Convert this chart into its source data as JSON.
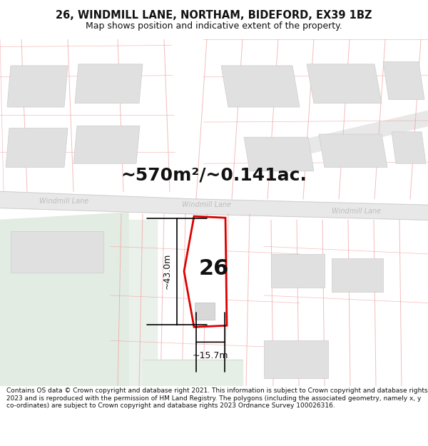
{
  "title": "26, WINDMILL LANE, NORTHAM, BIDEFORD, EX39 1BZ",
  "subtitle": "Map shows position and indicative extent of the property.",
  "area_label": "~570m²/~0.141ac.",
  "width_label": "~15.7m",
  "height_label": "~43.0m",
  "number_label": "26",
  "road_label": "Windmill Lane",
  "copyright_text": "Contains OS data © Crown copyright and database right 2021. This information is subject to Crown copyright and database rights 2023 and is reproduced with the permission of HM Land Registry. The polygons (including the associated geometry, namely x, y co-ordinates) are subject to Crown copyright and database rights 2023 Ordnance Survey 100026316.",
  "bg_color": "#fafafa",
  "road_fill": "#e8e8e8",
  "road_fill2": "#dedede",
  "building_fill": "#e0e0e0",
  "building_edge": "#cccccc",
  "plot_fill": "#ffffff",
  "plot_edge": "#dd0000",
  "cadastral_color": "#f0a0a0",
  "dim_color": "#111111",
  "road_text_color": "#c0bebe",
  "green_fill": "#eaf0ea",
  "title_color": "#111111"
}
